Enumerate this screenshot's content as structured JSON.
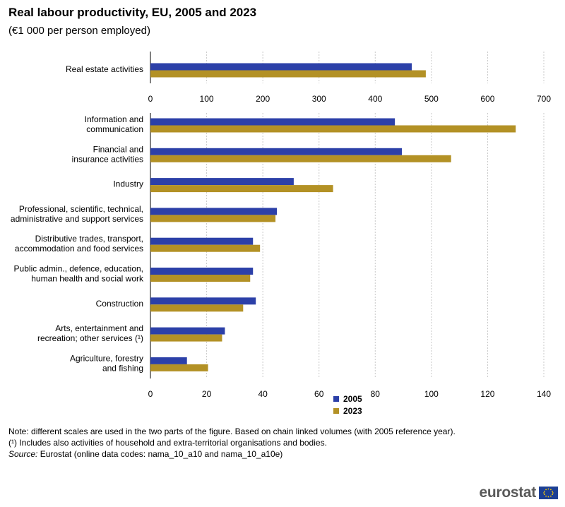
{
  "title": "Real labour productivity, EU, 2005 and 2023",
  "subtitle": "(€1 000 per person employed)",
  "legend": {
    "s2005": "2005",
    "s2023": "2023"
  },
  "colors": {
    "s2005": "#2c40a8",
    "s2023": "#b39125",
    "grid": "#c8c8c8"
  },
  "notes": {
    "line1": "Note: different scales are used in the two parts of the figure. Based on chain linked volumes (with 2005 reference year).",
    "line2": "(¹) Includes also activities of household and extra-territorial organisations and bodies.",
    "source_label": "Source:",
    "source_text": " Eurostat (online data codes: nama_10_a10 and nama_10_a10e)"
  },
  "logo": {
    "text": "eurostat"
  },
  "chart_data": [
    {
      "type": "bar",
      "orientation": "horizontal",
      "title": "Real labour productivity, EU, 2005 and 2023",
      "categories": [
        [
          "Real estate activities"
        ]
      ],
      "series": [
        {
          "name": "2005",
          "values": [
            465
          ]
        },
        {
          "name": "2023",
          "values": [
            490
          ]
        }
      ],
      "xlim": [
        0,
        700
      ],
      "xticks": [
        "0",
        "100",
        "200",
        "300",
        "400",
        "500",
        "600",
        "700"
      ]
    },
    {
      "type": "bar",
      "orientation": "horizontal",
      "categories": [
        [
          "Information and",
          "communication"
        ],
        [
          "Financial and",
          "insurance activities"
        ],
        [
          "Industry"
        ],
        [
          "Professional, scientific, technical,",
          "administrative and support services"
        ],
        [
          "Distributive trades, transport,",
          "accommodation and food services"
        ],
        [
          "Public admin., defence, education,",
          "human health and social work"
        ],
        [
          "Construction"
        ],
        [
          "Arts, entertainment and",
          "recreation; other services (¹)"
        ],
        [
          "Agriculture, forestry",
          "and fishing"
        ]
      ],
      "series": [
        {
          "name": "2005",
          "values": [
            87,
            89.5,
            51,
            45,
            36.5,
            36.5,
            37.5,
            26.5,
            13
          ]
        },
        {
          "name": "2023",
          "values": [
            130,
            107,
            65,
            44.5,
            39,
            35.5,
            33,
            25.5,
            20.5
          ]
        }
      ],
      "xlim": [
        0,
        140
      ],
      "xticks": [
        "0",
        "20",
        "40",
        "60",
        "80",
        "100",
        "120",
        "140"
      ]
    }
  ]
}
